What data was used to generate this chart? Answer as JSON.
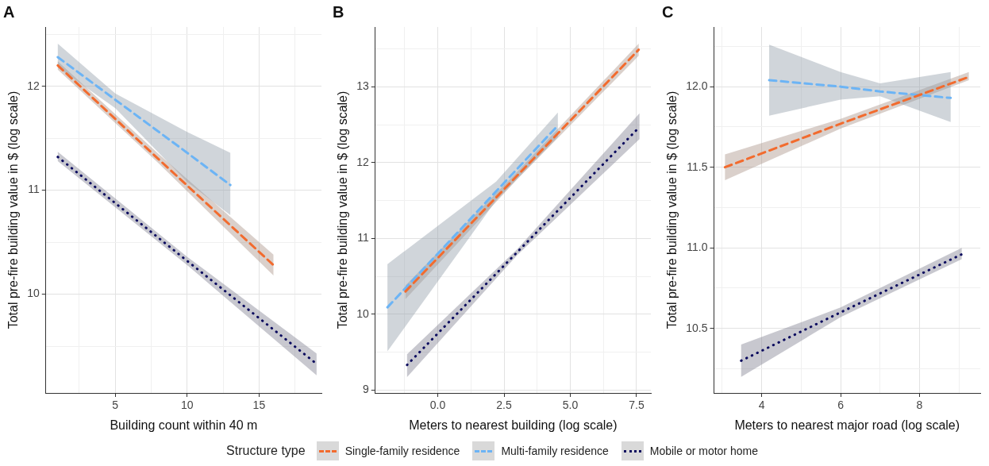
{
  "chart_data": [
    {
      "type": "line",
      "title": "A",
      "xlabel": "Building count within 40 m",
      "ylabel": "Total pre-fire building value in $ (log scale)",
      "legend_title": "Structure type",
      "legend": "bottom",
      "grid": true,
      "xlim": [
        0.17,
        19.34
      ],
      "ylim": [
        9.05,
        12.57
      ],
      "xticks": [
        {
          "value": 2.5,
          "label": null
        },
        5,
        {
          "value": 7.5,
          "label": null
        },
        10,
        {
          "value": 12.5,
          "label": null
        },
        15,
        {
          "value": 17.5,
          "label": null
        }
      ],
      "yticks": [
        {
          "value": 9.5,
          "label": null
        },
        10,
        {
          "value": 10.5,
          "label": null
        },
        11,
        {
          "value": 11.5,
          "label": null
        },
        12,
        {
          "value": 12.5,
          "label": null
        }
      ],
      "series": [
        {
          "name": "Single-family residence",
          "color": "#f26b2e",
          "line_style": "dashed",
          "x": [
            1,
            8,
            16
          ],
          "values": [
            12.2,
            11.3,
            10.28
          ],
          "lower": [
            12.16,
            11.26,
            10.18
          ],
          "upper": [
            12.24,
            11.35,
            10.38
          ]
        },
        {
          "name": "Multi-family residence",
          "color": "#6cb4f5",
          "line_style": "dashed",
          "x": [
            1,
            5,
            10,
            13
          ],
          "values": [
            12.28,
            11.87,
            11.36,
            11.05
          ],
          "lower": [
            12.18,
            11.79,
            11.08,
            10.76
          ],
          "upper": [
            12.41,
            11.93,
            11.56,
            11.36
          ]
        },
        {
          "name": "Mobile or motor home",
          "color": "#0a0a5e",
          "line_style": "dotted",
          "x": [
            1,
            10,
            19
          ],
          "values": [
            11.32,
            10.32,
            9.33
          ],
          "lower": [
            11.28,
            10.28,
            9.22
          ],
          "upper": [
            11.37,
            10.36,
            9.43
          ]
        }
      ]
    },
    {
      "type": "line",
      "title": "B",
      "xlabel": "Meters to nearest building (log scale)",
      "ylabel": "Total pre-fire building value in $ (log scale)",
      "grid": true,
      "xlim": [
        -2.36,
        8.04
      ],
      "ylim": [
        8.96,
        13.79
      ],
      "xticks": [
        {
          "value": -1.25,
          "label": null
        },
        {
          "value": 0,
          "label": "0.0"
        },
        {
          "value": 1.25,
          "label": null
        },
        2.5,
        {
          "value": 3.75,
          "label": null
        },
        {
          "value": 5,
          "label": "5.0"
        },
        {
          "value": 6.25,
          "label": null
        },
        7.5
      ],
      "yticks": [
        9,
        {
          "value": 9.5,
          "label": null
        },
        10,
        {
          "value": 10.5,
          "label": null
        },
        11,
        {
          "value": 11.5,
          "label": null
        },
        12,
        {
          "value": 12.5,
          "label": null
        },
        13,
        {
          "value": 13.5,
          "label": null
        }
      ],
      "series": [
        {
          "color": "#f26b2e",
          "line_style": "dashed",
          "x": [
            -1.22,
            3,
            7.58
          ],
          "values": [
            10.3,
            11.83,
            13.49
          ],
          "lower": [
            10.2,
            11.78,
            13.41
          ],
          "upper": [
            10.38,
            11.88,
            13.57
          ]
        },
        {
          "color": "#6cb4f5",
          "line_style": "dashed",
          "x": [
            -1.9,
            2.2,
            4.53
          ],
          "values": [
            10.09,
            11.62,
            12.49
          ],
          "lower": [
            9.51,
            11.5,
            12.34
          ],
          "upper": [
            10.66,
            11.75,
            12.66
          ]
        },
        {
          "color": "#0a0a5e",
          "line_style": "dotted",
          "x": [
            -1.16,
            3,
            7.61
          ],
          "values": [
            9.33,
            10.82,
            12.47
          ],
          "lower": [
            9.17,
            10.78,
            12.31
          ],
          "upper": [
            9.47,
            10.86,
            12.65
          ]
        }
      ]
    },
    {
      "type": "line",
      "title": "C",
      "xlabel": "Meters to nearest major road (log scale)",
      "ylabel": "Total pre-fire building value in $ (log scale)",
      "grid": true,
      "xlim": [
        2.79,
        9.54
      ],
      "ylim": [
        10.1,
        12.37
      ],
      "xticks": [
        {
          "value": 3,
          "label": null
        },
        4,
        {
          "value": 5,
          "label": null
        },
        6,
        {
          "value": 7,
          "label": null
        },
        8,
        {
          "value": 9,
          "label": null
        }
      ],
      "yticks": [
        {
          "value": 10.25,
          "label": null
        },
        10.5,
        {
          "value": 10.75,
          "label": null
        },
        {
          "value": 11,
          "label": "11.0"
        },
        {
          "value": 11.25,
          "label": null
        },
        11.5,
        {
          "value": 11.75,
          "label": null
        },
        {
          "value": 12,
          "label": "12.0"
        },
        {
          "value": 12.25,
          "label": null
        }
      ],
      "series": [
        {
          "color": "#f26b2e",
          "line_style": "dashed",
          "x": [
            3.07,
            6,
            9.25
          ],
          "values": [
            11.5,
            11.77,
            12.06
          ],
          "lower": [
            11.42,
            11.74,
            12.04
          ],
          "upper": [
            11.58,
            11.8,
            12.09
          ]
        },
        {
          "color": "#6cb4f5",
          "line_style": "dashed",
          "x": [
            4.19,
            6,
            7,
            8.79
          ],
          "values": [
            12.04,
            12.0,
            11.97,
            11.93
          ],
          "lower": [
            11.82,
            11.92,
            11.94,
            11.78
          ],
          "upper": [
            12.26,
            12.09,
            12.02,
            12.09
          ]
        },
        {
          "color": "#0a0a5e",
          "line_style": "dotted",
          "x": [
            3.48,
            6,
            9.07
          ],
          "values": [
            10.3,
            10.6,
            10.96
          ],
          "lower": [
            10.2,
            10.57,
            10.93
          ],
          "upper": [
            10.4,
            10.63,
            11.0
          ]
        }
      ]
    }
  ]
}
